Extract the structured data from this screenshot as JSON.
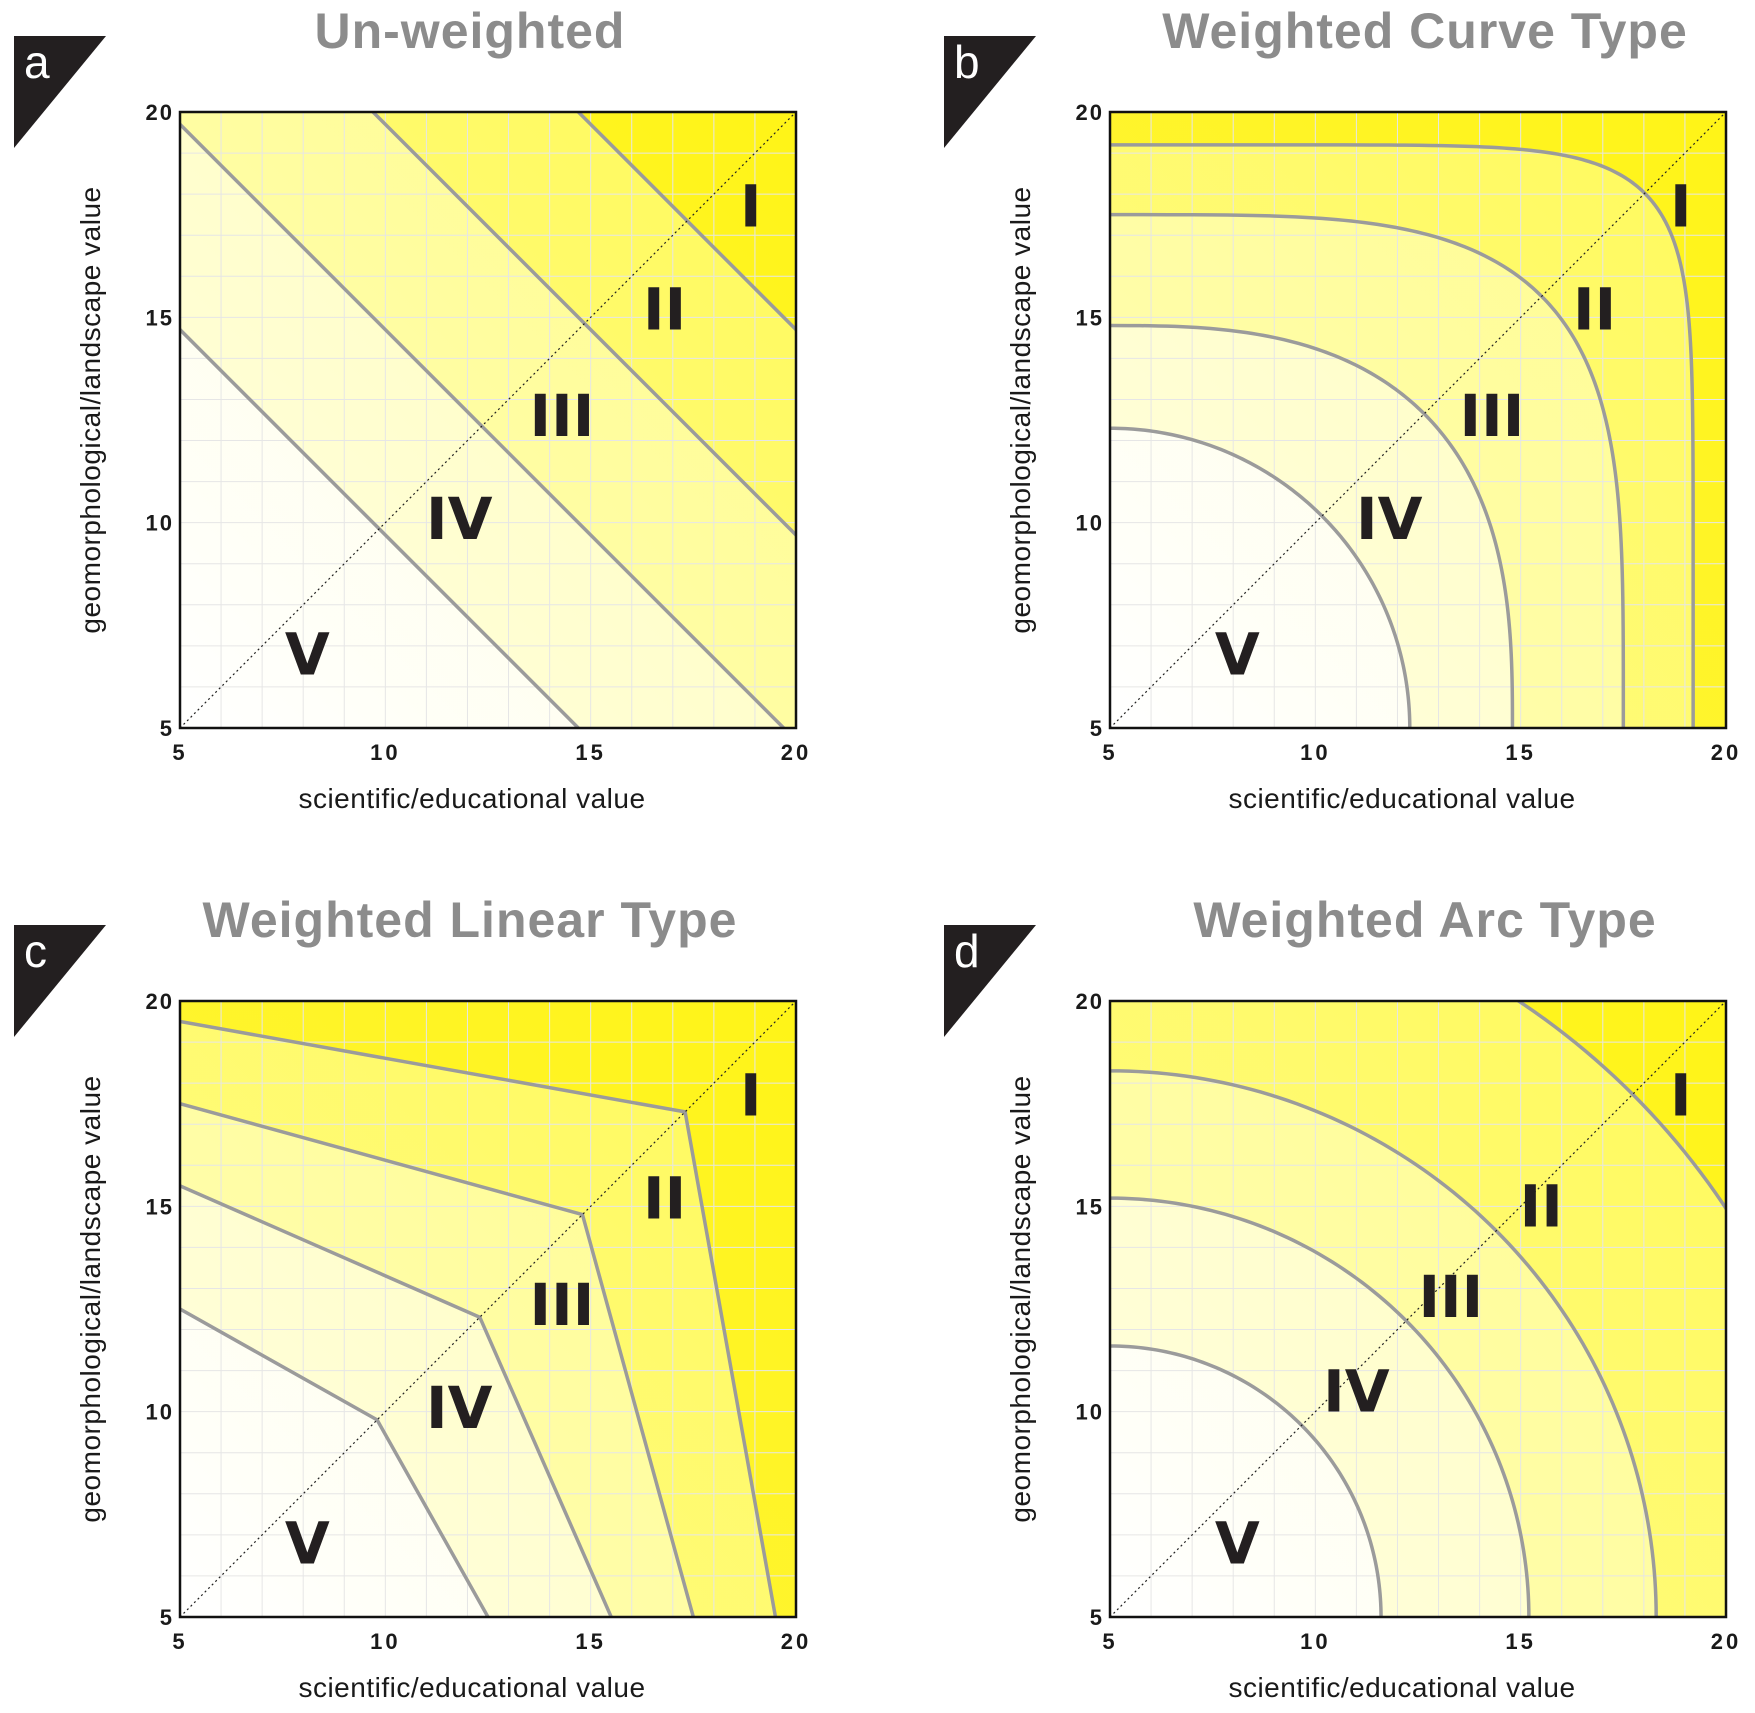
{
  "colors": {
    "zone_I": "#fff200",
    "zone_II": "#fffa5c",
    "zone_III": "#fffd9e",
    "zone_IV": "#fffed6",
    "zone_V": "#ffffff",
    "boundary": "#9b9b9b",
    "grid": "#e6e6e6",
    "title": "#8c8c8c",
    "tag": "#231f20"
  },
  "chart_data": [
    {
      "panel": "a",
      "type": "area",
      "title": "Un-weighted",
      "xlabel": "scientific/educational value",
      "ylabel": "geomorphological/landscape value",
      "xlim": [
        5,
        20
      ],
      "ylim": [
        5,
        20
      ],
      "xticks": [
        "5",
        "10",
        "15",
        "20"
      ],
      "yticks": [
        "5",
        "10",
        "15",
        "20"
      ],
      "grid": true,
      "diagonal": true,
      "boundary_shape": "linear",
      "boundaries": [
        {
          "model": "sum",
          "value": 19.7
        },
        {
          "model": "sum",
          "value": 24.7
        },
        {
          "model": "sum",
          "value": 29.7
        },
        {
          "model": "sum",
          "value": 34.7
        }
      ],
      "zone_labels": [
        {
          "text": "I",
          "x": 18.9,
          "y": 17.6
        },
        {
          "text": "II",
          "x": 16.8,
          "y": 15.1
        },
        {
          "text": "III",
          "x": 14.3,
          "y": 12.5
        },
        {
          "text": "IV",
          "x": 11.8,
          "y": 10.0
        },
        {
          "text": "V",
          "x": 8.1,
          "y": 6.7
        }
      ]
    },
    {
      "panel": "b",
      "type": "area",
      "title": "Weighted Curve Type",
      "xlabel": "scientific/educational value",
      "ylabel": "geomorphological/landscape value",
      "xlim": [
        5,
        20
      ],
      "ylim": [
        5,
        20
      ],
      "xticks": [
        "5",
        "10",
        "15",
        "20"
      ],
      "yticks": [
        "5",
        "10",
        "15",
        "20"
      ],
      "grid": true,
      "diagonal": true,
      "boundary_shape": "curve",
      "boundaries": [
        {
          "model": "superellipse",
          "value": 12.3,
          "exponent": 2.0
        },
        {
          "model": "superellipse",
          "value": 14.8,
          "exponent": 2.8
        },
        {
          "model": "superellipse",
          "value": 17.5,
          "exponent": 4.0
        },
        {
          "model": "superellipse",
          "value": 19.2,
          "exponent": 8.0
        }
      ],
      "zone_labels": [
        {
          "text": "I",
          "x": 18.9,
          "y": 17.6
        },
        {
          "text": "II",
          "x": 16.8,
          "y": 15.1
        },
        {
          "text": "III",
          "x": 14.3,
          "y": 12.5
        },
        {
          "text": "IV",
          "x": 11.8,
          "y": 10.0
        },
        {
          "text": "V",
          "x": 8.1,
          "y": 6.7
        }
      ]
    },
    {
      "panel": "c",
      "type": "area",
      "title": "Weighted Linear Type",
      "xlabel": "scientific/educational value",
      "ylabel": "geomorphological/landscape value",
      "xlim": [
        5,
        20
      ],
      "ylim": [
        5,
        20
      ],
      "xticks": [
        "5",
        "10",
        "15",
        "20"
      ],
      "yticks": [
        "5",
        "10",
        "15",
        "20"
      ],
      "grid": true,
      "diagonal": true,
      "boundary_shape": "polyline",
      "boundaries": [
        {
          "model": "polyline",
          "points": [
            [
              5,
              12.5
            ],
            [
              9.8,
              9.8
            ],
            [
              12.5,
              5
            ]
          ]
        },
        {
          "model": "polyline",
          "points": [
            [
              5,
              15.5
            ],
            [
              12.3,
              12.3
            ],
            [
              15.5,
              5
            ]
          ]
        },
        {
          "model": "polyline",
          "points": [
            [
              5,
              17.5
            ],
            [
              14.8,
              14.8
            ],
            [
              17.5,
              5
            ]
          ]
        },
        {
          "model": "polyline",
          "points": [
            [
              5,
              19.5
            ],
            [
              17.3,
              17.3
            ],
            [
              19.5,
              5
            ]
          ]
        }
      ],
      "zone_labels": [
        {
          "text": "I",
          "x": 18.9,
          "y": 17.6
        },
        {
          "text": "II",
          "x": 16.8,
          "y": 15.1
        },
        {
          "text": "III",
          "x": 14.3,
          "y": 12.5
        },
        {
          "text": "IV",
          "x": 11.8,
          "y": 10.0
        },
        {
          "text": "V",
          "x": 8.1,
          "y": 6.7
        }
      ]
    },
    {
      "panel": "d",
      "type": "area",
      "title": "Weighted Arc Type",
      "xlabel": "scientific/educational value",
      "ylabel": "geomorphological/landscape value",
      "xlim": [
        5,
        20
      ],
      "ylim": [
        5,
        20
      ],
      "xticks": [
        "5",
        "10",
        "15",
        "20"
      ],
      "yticks": [
        "5",
        "10",
        "15",
        "20"
      ],
      "grid": true,
      "diagonal": true,
      "boundary_shape": "arc",
      "boundaries": [
        {
          "model": "circle",
          "value": 11.6
        },
        {
          "model": "circle",
          "value": 15.2
        },
        {
          "model": "circle",
          "value": 18.3
        },
        {
          "model": "circle",
          "value": 23.0
        }
      ],
      "zone_labels": [
        {
          "text": "I",
          "x": 18.9,
          "y": 17.6
        },
        {
          "text": "II",
          "x": 15.5,
          "y": 14.9
        },
        {
          "text": "III",
          "x": 13.3,
          "y": 12.7
        },
        {
          "text": "IV",
          "x": 11.0,
          "y": 10.4
        },
        {
          "text": "V",
          "x": 8.1,
          "y": 6.7
        }
      ]
    }
  ]
}
